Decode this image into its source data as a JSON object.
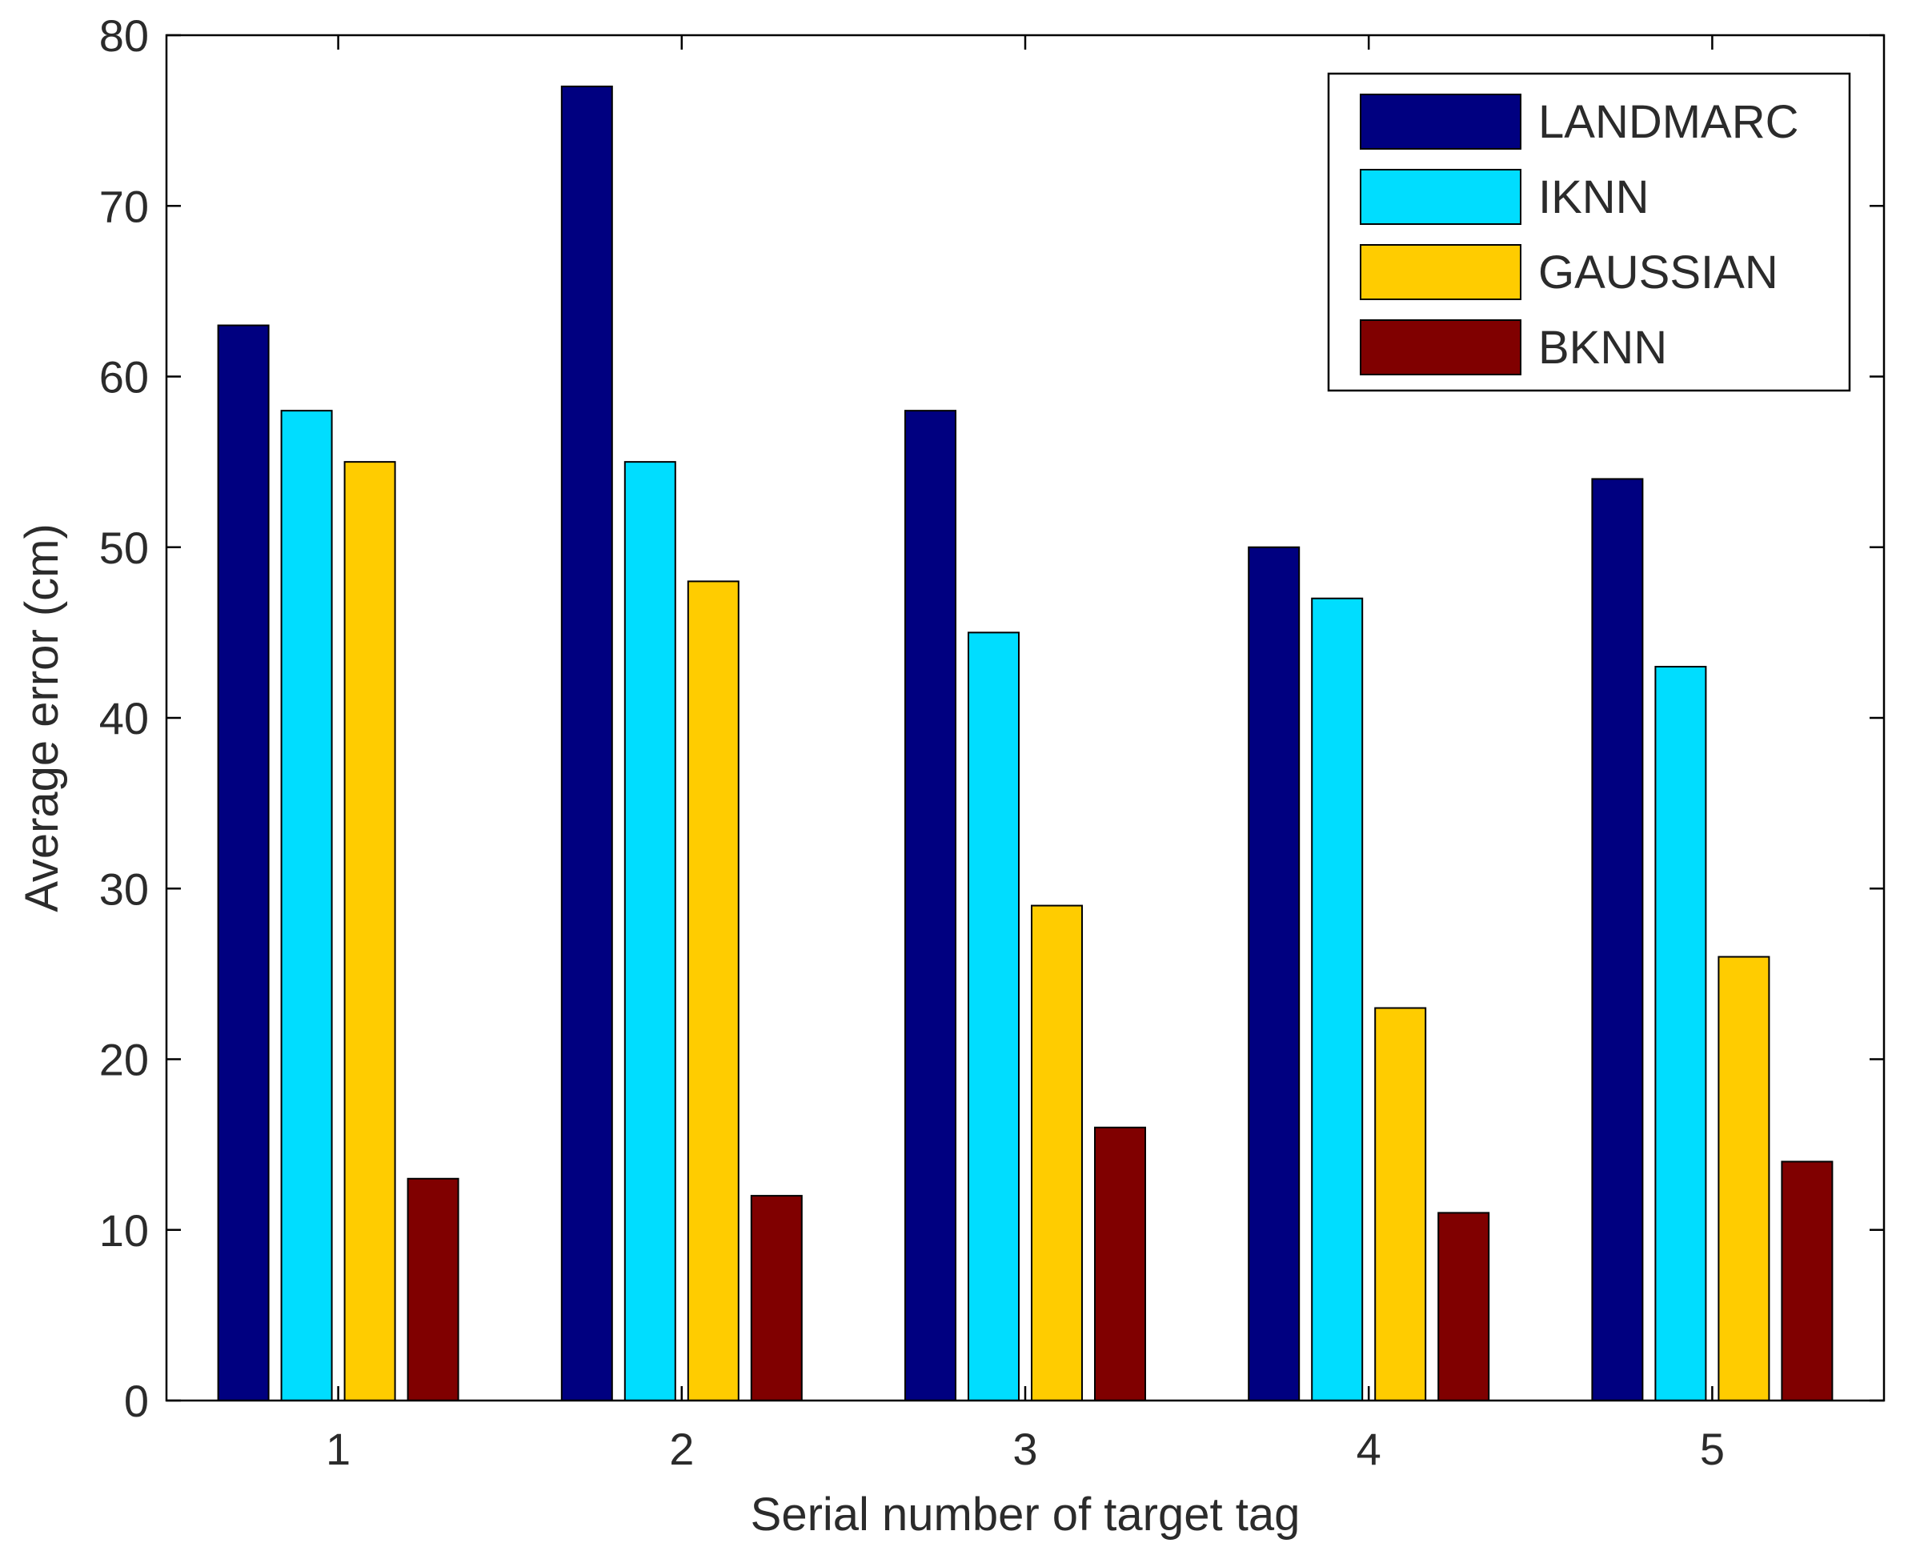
{
  "chart_data": {
    "type": "bar",
    "title": "",
    "xlabel": "Serial number of target tag",
    "ylabel": "Average error (cm)",
    "categories": [
      "1",
      "2",
      "3",
      "4",
      "5"
    ],
    "ylim": [
      0,
      80
    ],
    "yticks": [
      0,
      10,
      20,
      30,
      40,
      50,
      60,
      70,
      80
    ],
    "ytick_labels": [
      "0",
      "10",
      "20",
      "30",
      "40",
      "50",
      "60",
      "70",
      "80"
    ],
    "grid": false,
    "legend_position": "top-right",
    "series": [
      {
        "name": "LANDMARC",
        "color": "#000080",
        "values": [
          63,
          77,
          58,
          50,
          54
        ]
      },
      {
        "name": "IKNN",
        "color": "#00DDFF",
        "values": [
          58,
          55,
          45,
          47,
          43
        ]
      },
      {
        "name": "GAUSSIAN",
        "color": "#FFCC00",
        "values": [
          55,
          48,
          29,
          23,
          26
        ]
      },
      {
        "name": "BKNN",
        "color": "#800000",
        "values": [
          13,
          12,
          16,
          11,
          14
        ]
      }
    ]
  }
}
